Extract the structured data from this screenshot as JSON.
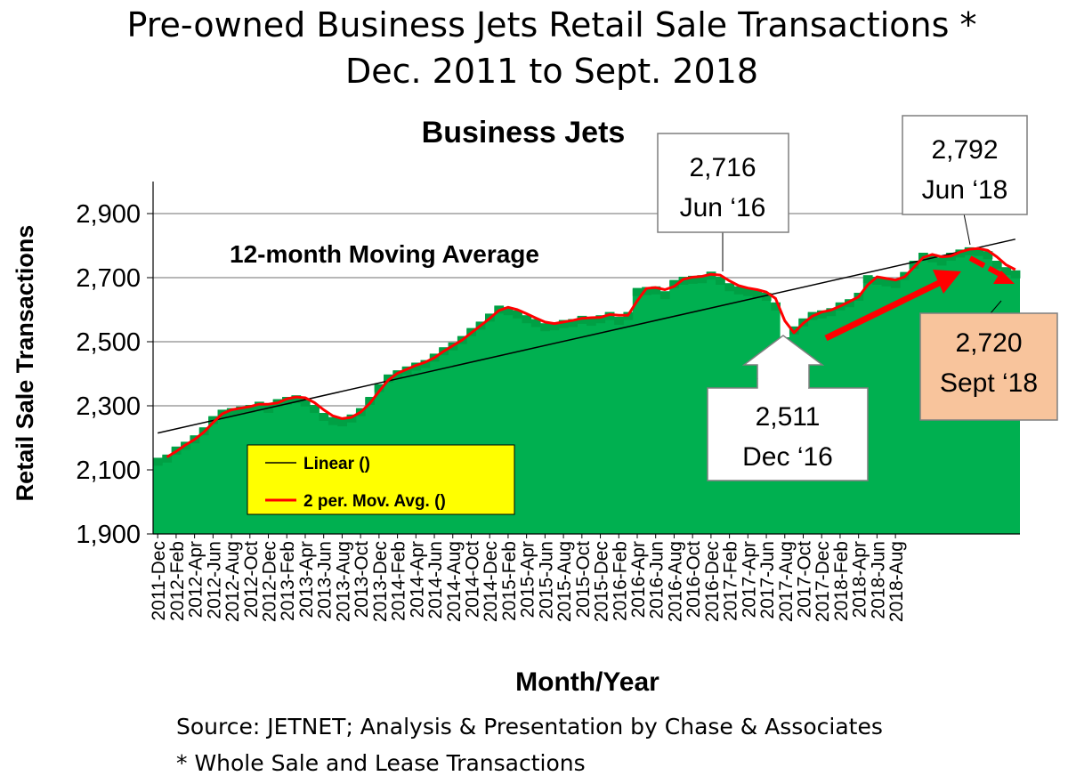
{
  "page_title": "Pre-owned Business Jets Retail Sale Transactions *",
  "page_subtitle": "Dec. 2011 to Sept. 2018",
  "source": "Source: JETNET; Analysis & Presentation by Chase & Associates",
  "footnote": "* Whole Sale and Lease Transactions",
  "colors": {
    "area": "#00b050",
    "moving_avg": "#ff0000",
    "trend": "#000000",
    "legend_bg": "#ffff00",
    "callout_latest_bg": "#f8c49c"
  },
  "chart_data": {
    "type": "area",
    "title": "Business Jets",
    "xlabel": "Month/Year",
    "ylabel": "Retail Sale Transactions",
    "ylim": [
      1900,
      3000
    ],
    "yticks": [
      1900,
      2100,
      2300,
      2500,
      2700,
      2900
    ],
    "ytick_labels": [
      "1,900",
      "2,100",
      "2,300",
      "2,500",
      "2,700",
      "2,900"
    ],
    "grid": true,
    "x_labels": [
      "2011-Dec",
      "2012-Feb",
      "2012-Apr",
      "2012-Jun",
      "2012-Aug",
      "2012-Oct",
      "2012-Dec",
      "2013-Feb",
      "2013-Apr",
      "2013-Jun",
      "2013-Aug",
      "2013-Oct",
      "2013-Dec",
      "2014-Feb",
      "2014-Apr",
      "2014-Jun",
      "2014-Aug",
      "2014-Oct",
      "2014-Dec",
      "2015-Feb",
      "2015-Apr",
      "2015-Jun",
      "2015-Aug",
      "2015-Oct",
      "2015-Dec",
      "2016-Feb",
      "2016-Apr",
      "2016-Jun",
      "2016-Aug",
      "2016-Oct",
      "2016-Dec",
      "2017-Feb",
      "2017-Apr",
      "2017-Jun",
      "2017-Aug",
      "2017-Oct",
      "2017-Dec",
      "2018-Feb",
      "2018-Apr",
      "2018-Jun",
      "2018-Aug"
    ],
    "series": [
      {
        "values": [
          2135,
          2145,
          2170,
          2185,
          2205,
          2230,
          2265,
          2285,
          2290,
          2295,
          2300,
          2310,
          2300,
          2318,
          2325,
          2330,
          2320,
          2300,
          2275,
          2262,
          2258,
          2270,
          2290,
          2325,
          2365,
          2395,
          2408,
          2420,
          2432,
          2440,
          2460,
          2480,
          2495,
          2515,
          2540,
          2560,
          2585,
          2610,
          2605,
          2595,
          2580,
          2568,
          2555,
          2558,
          2565,
          2568,
          2578,
          2572,
          2580,
          2590,
          2575,
          2590,
          2665,
          2668,
          2670,
          2655,
          2690,
          2700,
          2703,
          2705,
          2716,
          2700,
          2680,
          2670,
          2665,
          2660,
          2650,
          2620,
          2511,
          2545,
          2570,
          2590,
          2595,
          2602,
          2620,
          2630,
          2650,
          2705,
          2700,
          2695,
          2690,
          2715,
          2750,
          2775,
          2770,
          2760,
          2775,
          2785,
          2792,
          2790,
          2780,
          2750,
          2730,
          2720
        ]
      },
      {
        "name": "Linear ()",
        "type": "line",
        "values": [
          2215,
          2820
        ]
      },
      {
        "name": "2 per. Mov. Avg. ()",
        "type": "line"
      }
    ],
    "annotations": [
      {
        "label_line1": "12-month Moving Average"
      },
      {
        "label_line1": "2,716",
        "label_line2": "Jun ‘16",
        "value": 2716
      },
      {
        "label_line1": "2,792",
        "label_line2": "Jun ‘18",
        "value": 2792
      },
      {
        "label_line1": "2,511",
        "label_line2": "Dec ‘16",
        "value": 2511
      },
      {
        "label_line1": "2,720",
        "label_line2": "Sept ‘18",
        "value": 2720
      }
    ],
    "legend": {
      "position": "bottom-left"
    }
  }
}
